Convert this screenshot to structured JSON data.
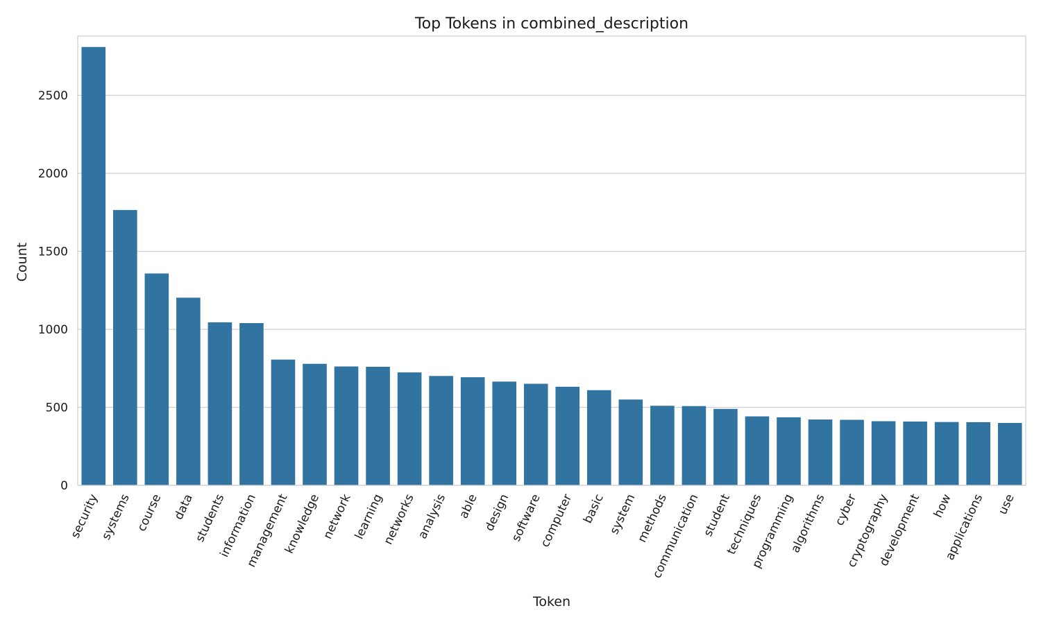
{
  "chart_data": {
    "type": "bar",
    "title": "Top Tokens in combined_description",
    "xlabel": "Token",
    "ylabel": "Count",
    "ylim": [
      0,
      2880
    ],
    "yticks": [
      0,
      500,
      1000,
      1500,
      2000,
      2500
    ],
    "grid": "horizontal",
    "bar_color": "#3274a1",
    "categories": [
      "security",
      "systems",
      "course",
      "data",
      "students",
      "information",
      "management",
      "knowledge",
      "network",
      "learning",
      "networks",
      "analysis",
      "able",
      "design",
      "software",
      "computer",
      "basic",
      "system",
      "methods",
      "communication",
      "student",
      "techniques",
      "programming",
      "algorithms",
      "cyber",
      "cryptography",
      "development",
      "how",
      "applications",
      "use"
    ],
    "values": [
      2810,
      1765,
      1358,
      1203,
      1045,
      1040,
      806,
      779,
      762,
      760,
      724,
      701,
      693,
      665,
      651,
      632,
      610,
      550,
      510,
      508,
      490,
      442,
      436,
      422,
      420,
      411,
      409,
      406,
      405,
      400
    ]
  }
}
